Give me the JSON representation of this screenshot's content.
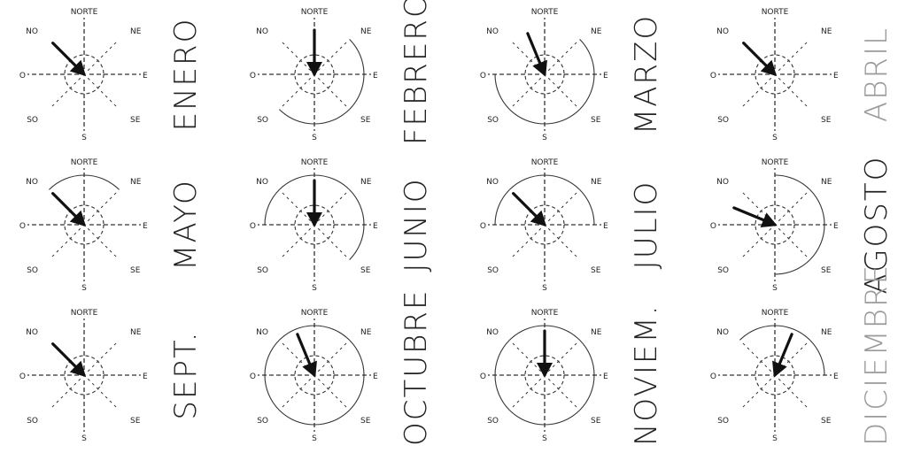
{
  "direction_labels": {
    "n": "NORTE",
    "ne": "NE",
    "e": "E",
    "se": "SE",
    "s": "S",
    "so": "SO",
    "o": "O",
    "no": "NO"
  },
  "roses": [
    {
      "month": "ENERO",
      "faded_label": false,
      "arrow_dir": "NO",
      "dashed_spokes": [
        "N",
        "S",
        "E",
        "O",
        "NE",
        "NO",
        "SE",
        "SO"
      ],
      "outer_arcs": []
    },
    {
      "month": "FEBRERO",
      "faded_label": false,
      "arrow_dir": "N",
      "dashed_spokes": [
        "N",
        "S",
        "E",
        "O",
        "NE",
        "NO",
        "SE",
        "SO"
      ],
      "outer_arcs": [
        "NE-E",
        "E-SE",
        "SE-S",
        "S-SO"
      ]
    },
    {
      "month": "MARZO",
      "faded_label": false,
      "arrow_dir": "NNO",
      "dashed_spokes": [
        "N",
        "S",
        "E",
        "O",
        "NE",
        "NO",
        "SE",
        "SO"
      ],
      "outer_arcs": [
        "NE-E",
        "E-SE",
        "SE-S",
        "S-SO",
        "SO-O"
      ]
    },
    {
      "month": "ABRIL",
      "faded_label": true,
      "arrow_dir": "NO",
      "dashed_spokes": [
        "N",
        "S",
        "E",
        "O",
        "NE",
        "NO",
        "SE",
        "SO"
      ],
      "outer_arcs": []
    },
    {
      "month": "MAYO",
      "faded_label": false,
      "arrow_dir": "NO",
      "dashed_spokes": [
        "N",
        "S",
        "E",
        "O",
        "NE",
        "NO",
        "SE",
        "SO"
      ],
      "outer_arcs": [
        "NO-N",
        "N-NE"
      ]
    },
    {
      "month": "JUNIO",
      "faded_label": false,
      "arrow_dir": "N",
      "dashed_spokes": [
        "N",
        "S",
        "E",
        "O",
        "NE",
        "NO",
        "SE",
        "SO"
      ],
      "outer_arcs": [
        "O-NO",
        "NO-N",
        "N-NE",
        "NE-E",
        "E-SE"
      ]
    },
    {
      "month": "JULIO",
      "faded_label": false,
      "arrow_dir": "NO",
      "dashed_spokes": [
        "N",
        "S",
        "E",
        "O",
        "NE",
        "NO",
        "SE",
        "SO"
      ],
      "outer_arcs": [
        "O-NO",
        "NO-N",
        "N-NE",
        "NE-E"
      ]
    },
    {
      "month": "AGOSTO",
      "faded_label": false,
      "arrow_dir": "ONO",
      "dashed_spokes": [
        "N",
        "S",
        "E",
        "O",
        "NE",
        "NO",
        "SE",
        "SO"
      ],
      "outer_arcs": [
        "N-NE",
        "NE-E",
        "E-SE",
        "SE-S"
      ]
    },
    {
      "month": "SEPT.",
      "faded_label": false,
      "arrow_dir": "NO",
      "dashed_spokes": [
        "N",
        "S",
        "E",
        "O",
        "NE",
        "NO",
        "SE",
        "SO"
      ],
      "outer_arcs": []
    },
    {
      "month": "OCTUBRE",
      "faded_label": false,
      "arrow_dir": "NNO",
      "dashed_spokes": [
        "N",
        "S",
        "E",
        "O",
        "NE",
        "NO",
        "SE",
        "SO"
      ],
      "outer_arcs": [
        "NO-N",
        "N-NE",
        "NE-E",
        "E-SE",
        "SE-S",
        "S-SO",
        "SO-O",
        "O-NO"
      ]
    },
    {
      "month": "NOVIEM.",
      "faded_label": false,
      "arrow_dir": "N",
      "dashed_spokes": [
        "N",
        "S",
        "E",
        "O",
        "NE",
        "NO",
        "SE",
        "SO"
      ],
      "outer_arcs": [
        "NO-N",
        "N-NE",
        "NE-E",
        "E-SE",
        "SE-S",
        "S-SO",
        "SO-O",
        "O-NO"
      ]
    },
    {
      "month": "DICIEMBRE",
      "faded_label": true,
      "arrow_dir": "NNE",
      "dashed_spokes": [
        "N",
        "S",
        "E",
        "O",
        "NE",
        "NO",
        "SE",
        "SO"
      ],
      "outer_arcs": [
        "NO-N",
        "N-NE",
        "NE-E"
      ]
    }
  ]
}
